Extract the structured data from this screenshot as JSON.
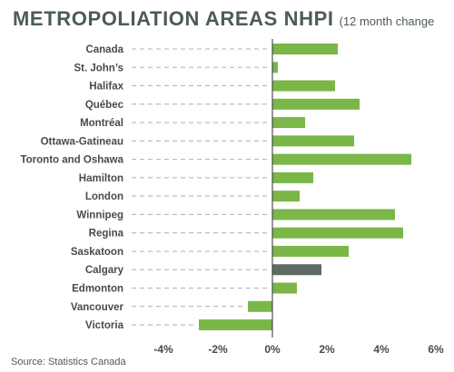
{
  "title": "METROPOLIATION AREAS NHPI",
  "subtitle": "(12 month change",
  "source": "Source: Statistics Canada",
  "colors": {
    "bar": "#7ab648",
    "highlight": "#5f6a67",
    "leader": "#b0b0b0",
    "axis": "#333333",
    "text": "#4a4a4a"
  },
  "chart_data": {
    "type": "bar",
    "orientation": "horizontal",
    "title": "METROPOLIATION AREAS NHPI",
    "subtitle": "(12 month change",
    "categories": [
      "Canada",
      "St. John’s",
      "Halifax",
      "Québec",
      "Montréal",
      "Ottawa-Gatineau",
      "Toronto and Oshawa",
      "Hamilton",
      "London",
      "Winnipeg",
      "Regina",
      "Saskatoon",
      "Calgary",
      "Edmonton",
      "Vancouver",
      "Victoria"
    ],
    "values": [
      2.4,
      0.2,
      2.3,
      3.2,
      1.2,
      3.0,
      5.1,
      1.5,
      1.0,
      4.5,
      4.8,
      2.8,
      1.8,
      0.9,
      -0.9,
      -2.7
    ],
    "highlight_category": "Calgary",
    "xlim": [
      -6,
      6
    ],
    "xticks": [
      -4,
      -2,
      0,
      2,
      4,
      6
    ],
    "xtick_labels": [
      "-4%",
      "-2%",
      "0%",
      "2%",
      "4%",
      "6%"
    ],
    "xlabel": "",
    "ylabel": "",
    "grid": false,
    "legend": "none"
  }
}
